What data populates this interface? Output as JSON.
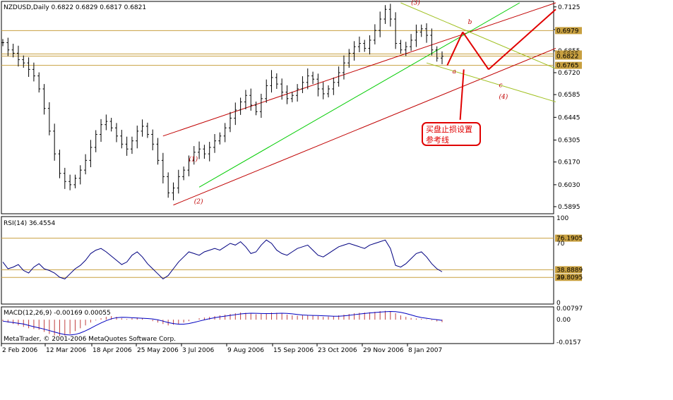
{
  "chart_data": [
    {
      "type": "candlestick",
      "panel": "price",
      "title": "NZDUSD,Daily  0.6822 0.6829 0.6817 0.6821",
      "ylim": [
        0.586,
        0.715
      ],
      "yticks": [
        0.7125,
        0.6985,
        0.6855,
        0.672,
        0.6585,
        0.6445,
        0.6305,
        0.617,
        0.603,
        0.5895
      ],
      "ytick_labels": [
        "0.7125",
        "0.6985",
        "0.6855",
        "0.6720",
        "0.6585",
        "0.6445",
        "0.6305",
        "0.6170",
        "0.6030",
        "0.5895"
      ],
      "x_dates": [
        "2 Feb 2006",
        "12 Mar 2006",
        "18 Apr 2006",
        "25 May 2006",
        "3 Jul 2006",
        "9 Aug 2006",
        "15 Sep 2006",
        "23 Oct 2006",
        "29 Nov 2006",
        "8 Jan 2007"
      ],
      "series_close": [
        0.6905,
        0.686,
        0.684,
        0.68,
        0.678,
        0.674,
        0.67,
        0.662,
        0.65,
        0.636,
        0.622,
        0.61,
        0.605,
        0.603,
        0.607,
        0.612,
        0.618,
        0.626,
        0.634,
        0.64,
        0.642,
        0.638,
        0.633,
        0.628,
        0.625,
        0.63,
        0.636,
        0.639,
        0.634,
        0.628,
        0.618,
        0.608,
        0.598,
        0.601,
        0.608,
        0.612,
        0.618,
        0.623,
        0.625,
        0.622,
        0.626,
        0.63,
        0.633,
        0.638,
        0.644,
        0.649,
        0.654,
        0.658,
        0.652,
        0.648,
        0.656,
        0.664,
        0.669,
        0.665,
        0.66,
        0.656,
        0.658,
        0.662,
        0.666,
        0.67,
        0.668,
        0.662,
        0.659,
        0.662,
        0.666,
        0.672,
        0.678,
        0.684,
        0.688,
        0.69,
        0.687,
        0.692,
        0.698,
        0.705,
        0.711,
        0.705,
        0.69,
        0.686,
        0.688,
        0.692,
        0.697,
        0.699,
        0.695,
        0.686,
        0.681,
        0.6821
      ],
      "horizontal_levels": [
        {
          "value": 0.6979,
          "label": "0.6979"
        },
        {
          "value": 0.6835,
          "label": "0.6835"
        },
        {
          "value": 0.6822,
          "label": "0.6822"
        },
        {
          "value": 0.6765,
          "label": "0.6765"
        }
      ],
      "wave_labels": [
        "(1)",
        "(2)",
        "(3)",
        "a",
        "b",
        "c",
        "(4)"
      ],
      "annotation": "买盘止损设置\n参考线"
    },
    {
      "type": "line",
      "panel": "indicator",
      "title": "RSI(14) 36.4554",
      "ylim": [
        0,
        100
      ],
      "yticks": [
        100,
        70,
        30,
        0
      ],
      "ytick_labels": [
        "100",
        "70",
        "30",
        "0"
      ],
      "levels": [
        {
          "value": 76.1905,
          "label": "76.1905"
        },
        {
          "value": 38.8889,
          "label": "38.8889"
        },
        {
          "value": 29.8095,
          "label": "29.8095"
        }
      ],
      "values": [
        48,
        40,
        42,
        45,
        38,
        35,
        42,
        46,
        40,
        38,
        35,
        30,
        28,
        34,
        40,
        44,
        50,
        58,
        62,
        64,
        60,
        55,
        50,
        45,
        48,
        56,
        60,
        54,
        46,
        40,
        34,
        28,
        32,
        40,
        48,
        54,
        60,
        58,
        56,
        60,
        62,
        64,
        62,
        66,
        70,
        68,
        72,
        66,
        58,
        60,
        68,
        74,
        70,
        62,
        58,
        56,
        60,
        64,
        66,
        68,
        62,
        56,
        54,
        58,
        62,
        66,
        68,
        70,
        68,
        66,
        64,
        68,
        70,
        72,
        74,
        64,
        44,
        42,
        46,
        52,
        58,
        60,
        54,
        46,
        40,
        36.4554
      ]
    },
    {
      "type": "bar",
      "panel": "indicator",
      "title": "MACD(12,26,9) -0.00169 0.00055",
      "ylim": [
        -0.0157,
        0.00797
      ],
      "yticks": [
        0.00797,
        0.0,
        -0.0157
      ],
      "ytick_labels": [
        "0.00797",
        "0.00",
        "-0.0157"
      ],
      "values": [
        -0.001,
        -0.002,
        -0.003,
        -0.004,
        -0.005,
        -0.006,
        -0.0065,
        -0.007,
        -0.0085,
        -0.01,
        -0.011,
        -0.0115,
        -0.011,
        -0.01,
        -0.008,
        -0.006,
        -0.004,
        -0.002,
        -0.0005,
        0.001,
        0.002,
        0.0025,
        0.002,
        0.001,
        0.0005,
        0.001,
        0.0015,
        0.001,
        0.0,
        -0.001,
        -0.002,
        -0.003,
        -0.004,
        -0.0035,
        -0.003,
        -0.002,
        -0.001,
        0.0,
        0.001,
        0.0015,
        0.002,
        0.0025,
        0.003,
        0.0035,
        0.004,
        0.0045,
        0.005,
        0.0048,
        0.0042,
        0.0038,
        0.004,
        0.0045,
        0.005,
        0.0048,
        0.0042,
        0.0035,
        0.003,
        0.0028,
        0.003,
        0.0032,
        0.003,
        0.0025,
        0.002,
        0.0022,
        0.0025,
        0.003,
        0.0035,
        0.004,
        0.0045,
        0.0048,
        0.005,
        0.0052,
        0.0055,
        0.006,
        0.0062,
        0.006,
        0.0045,
        0.003,
        0.002,
        0.0012,
        0.0008,
        0.0006,
        0.0003,
        -0.0005,
        -0.0012,
        -0.00169
      ]
    }
  ],
  "footer": "MetaTrader, © 2001-2006 MetaQuotes Software Corp.",
  "colors": {
    "red_channel": "#c00000",
    "green_channel": "#00cc00",
    "olive_channel": "#a0c020",
    "level": "#c8a040",
    "rsi_line": "#000080",
    "macd_line": "#0000c0",
    "macd_hist": "#c04040",
    "arrow": "#e00000"
  }
}
